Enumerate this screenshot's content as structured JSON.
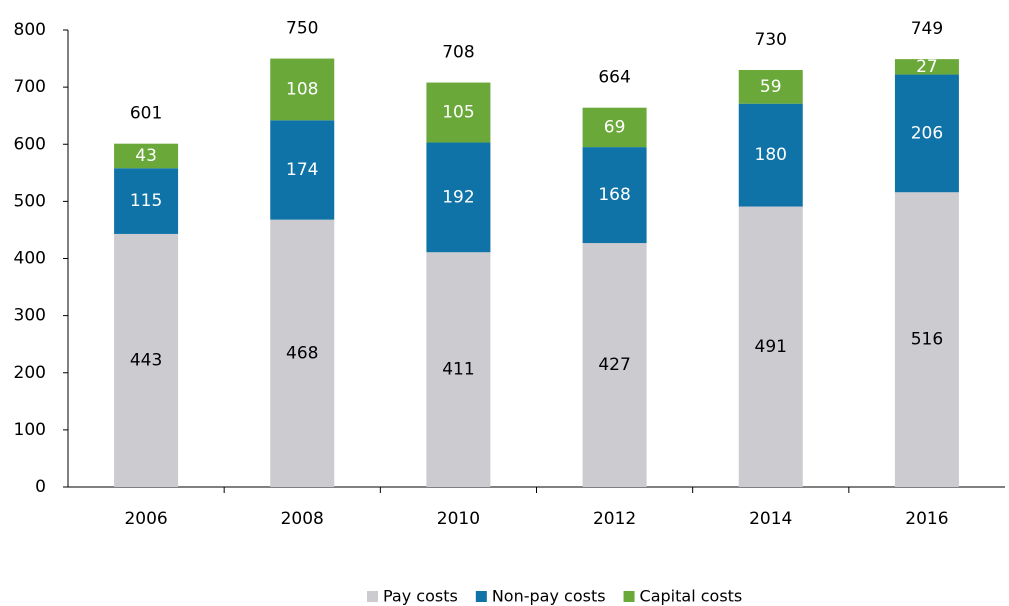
{
  "chart_data": {
    "type": "stacked_bar",
    "categories": [
      "2006",
      "2008",
      "2010",
      "2012",
      "2014",
      "2016"
    ],
    "series": [
      {
        "name": "Pay costs",
        "color": "#cbcbd0",
        "label_color": "#000000",
        "values": [
          443,
          468,
          411,
          427,
          491,
          516
        ]
      },
      {
        "name": "Non-pay costs",
        "color": "#1073a8",
        "label_color": "#ffffff",
        "values": [
          115,
          174,
          192,
          168,
          180,
          206
        ]
      },
      {
        "name": "Capital costs",
        "color": "#6aa83a",
        "label_color": "#ffffff",
        "values": [
          43,
          108,
          105,
          69,
          59,
          27
        ]
      }
    ],
    "totals": [
      601,
      750,
      708,
      664,
      730,
      749
    ],
    "ylim": [
      0,
      800
    ],
    "yticks": [
      0,
      100,
      200,
      300,
      400,
      500,
      600,
      700,
      800
    ],
    "grid": false,
    "legend": "bottom"
  }
}
